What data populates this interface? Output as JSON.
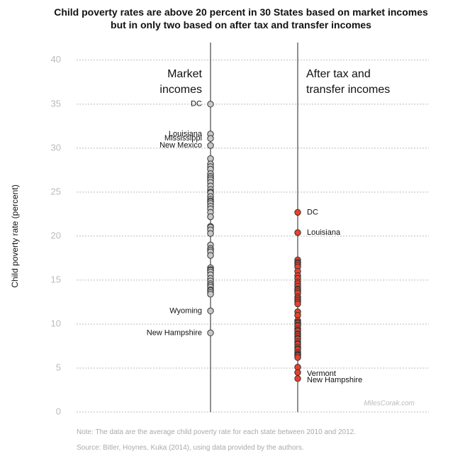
{
  "chart_data": {
    "type": "strip",
    "title": "Child poverty rates are above 20 percent in 30 States based on market incomes\nbut in only two based on after tax and transfer incomes",
    "y_label": "Child poverty rate (percent)",
    "ylim": [
      0,
      42
    ],
    "yticks": [
      0,
      5,
      10,
      15,
      20,
      25,
      30,
      35,
      40
    ],
    "grid": true,
    "watermark": "MilesCorak.com",
    "note": "Note: The data are the average child poverty rate for each state between 2010 and 2012.",
    "source": "Source: Bitler, Hoynes, Kuka (2014), using data provided by the authors.",
    "series": [
      {
        "name": "Market\nincomes",
        "color": "#c8c8c8",
        "values": [
          35.0,
          31.6,
          31.1,
          30.3,
          28.8,
          28.2,
          27.9,
          27.6,
          27.1,
          26.8,
          26.6,
          26.4,
          26.1,
          25.7,
          25.3,
          25.0,
          24.9,
          24.5,
          24.2,
          24.0,
          23.9,
          23.7,
          23.4,
          23.1,
          22.7,
          22.2,
          21.1,
          21.0,
          20.7,
          20.3,
          19.0,
          18.6,
          18.4,
          18.2,
          17.8,
          16.4,
          16.2,
          16.1,
          15.9,
          15.6,
          15.2,
          14.9,
          14.6,
          14.4,
          14.2,
          13.9,
          13.8,
          13.6,
          13.4,
          11.5,
          9.0
        ],
        "labels": [
          "DC",
          "Louisiana",
          "Mississippi",
          "New Mexico",
          null,
          null,
          null,
          null,
          null,
          null,
          null,
          null,
          null,
          null,
          null,
          null,
          null,
          null,
          null,
          null,
          null,
          null,
          null,
          null,
          null,
          null,
          null,
          null,
          null,
          null,
          null,
          null,
          null,
          null,
          null,
          null,
          null,
          null,
          null,
          null,
          null,
          null,
          null,
          null,
          null,
          null,
          null,
          null,
          null,
          "Wyoming",
          "New Hampshire"
        ]
      },
      {
        "name": "After tax and\ntransfer incomes",
        "color": "#e8412c",
        "values": [
          22.7,
          20.4,
          17.3,
          17.0,
          16.9,
          16.7,
          16.5,
          16.0,
          15.5,
          15.2,
          14.8,
          14.6,
          14.3,
          14.0,
          13.9,
          13.7,
          13.5,
          13.1,
          12.9,
          12.7,
          12.5,
          12.3,
          11.4,
          11.0,
          10.4,
          10.2,
          10.1,
          9.9,
          9.8,
          9.5,
          9.3,
          9.2,
          8.9,
          8.8,
          8.6,
          8.4,
          8.3,
          8.0,
          7.8,
          7.7,
          7.4,
          7.2,
          7.1,
          6.8,
          6.6,
          6.5,
          6.4,
          6.2,
          5.1,
          4.5,
          3.8
        ],
        "labels": [
          "DC",
          "Louisiana",
          null,
          null,
          null,
          null,
          null,
          null,
          null,
          null,
          null,
          null,
          null,
          null,
          null,
          null,
          null,
          null,
          null,
          null,
          null,
          null,
          null,
          null,
          null,
          null,
          null,
          null,
          null,
          null,
          null,
          null,
          null,
          null,
          null,
          null,
          null,
          null,
          null,
          null,
          null,
          null,
          null,
          null,
          null,
          null,
          null,
          null,
          null,
          "Vermont",
          "New Hampshire"
        ]
      }
    ]
  }
}
